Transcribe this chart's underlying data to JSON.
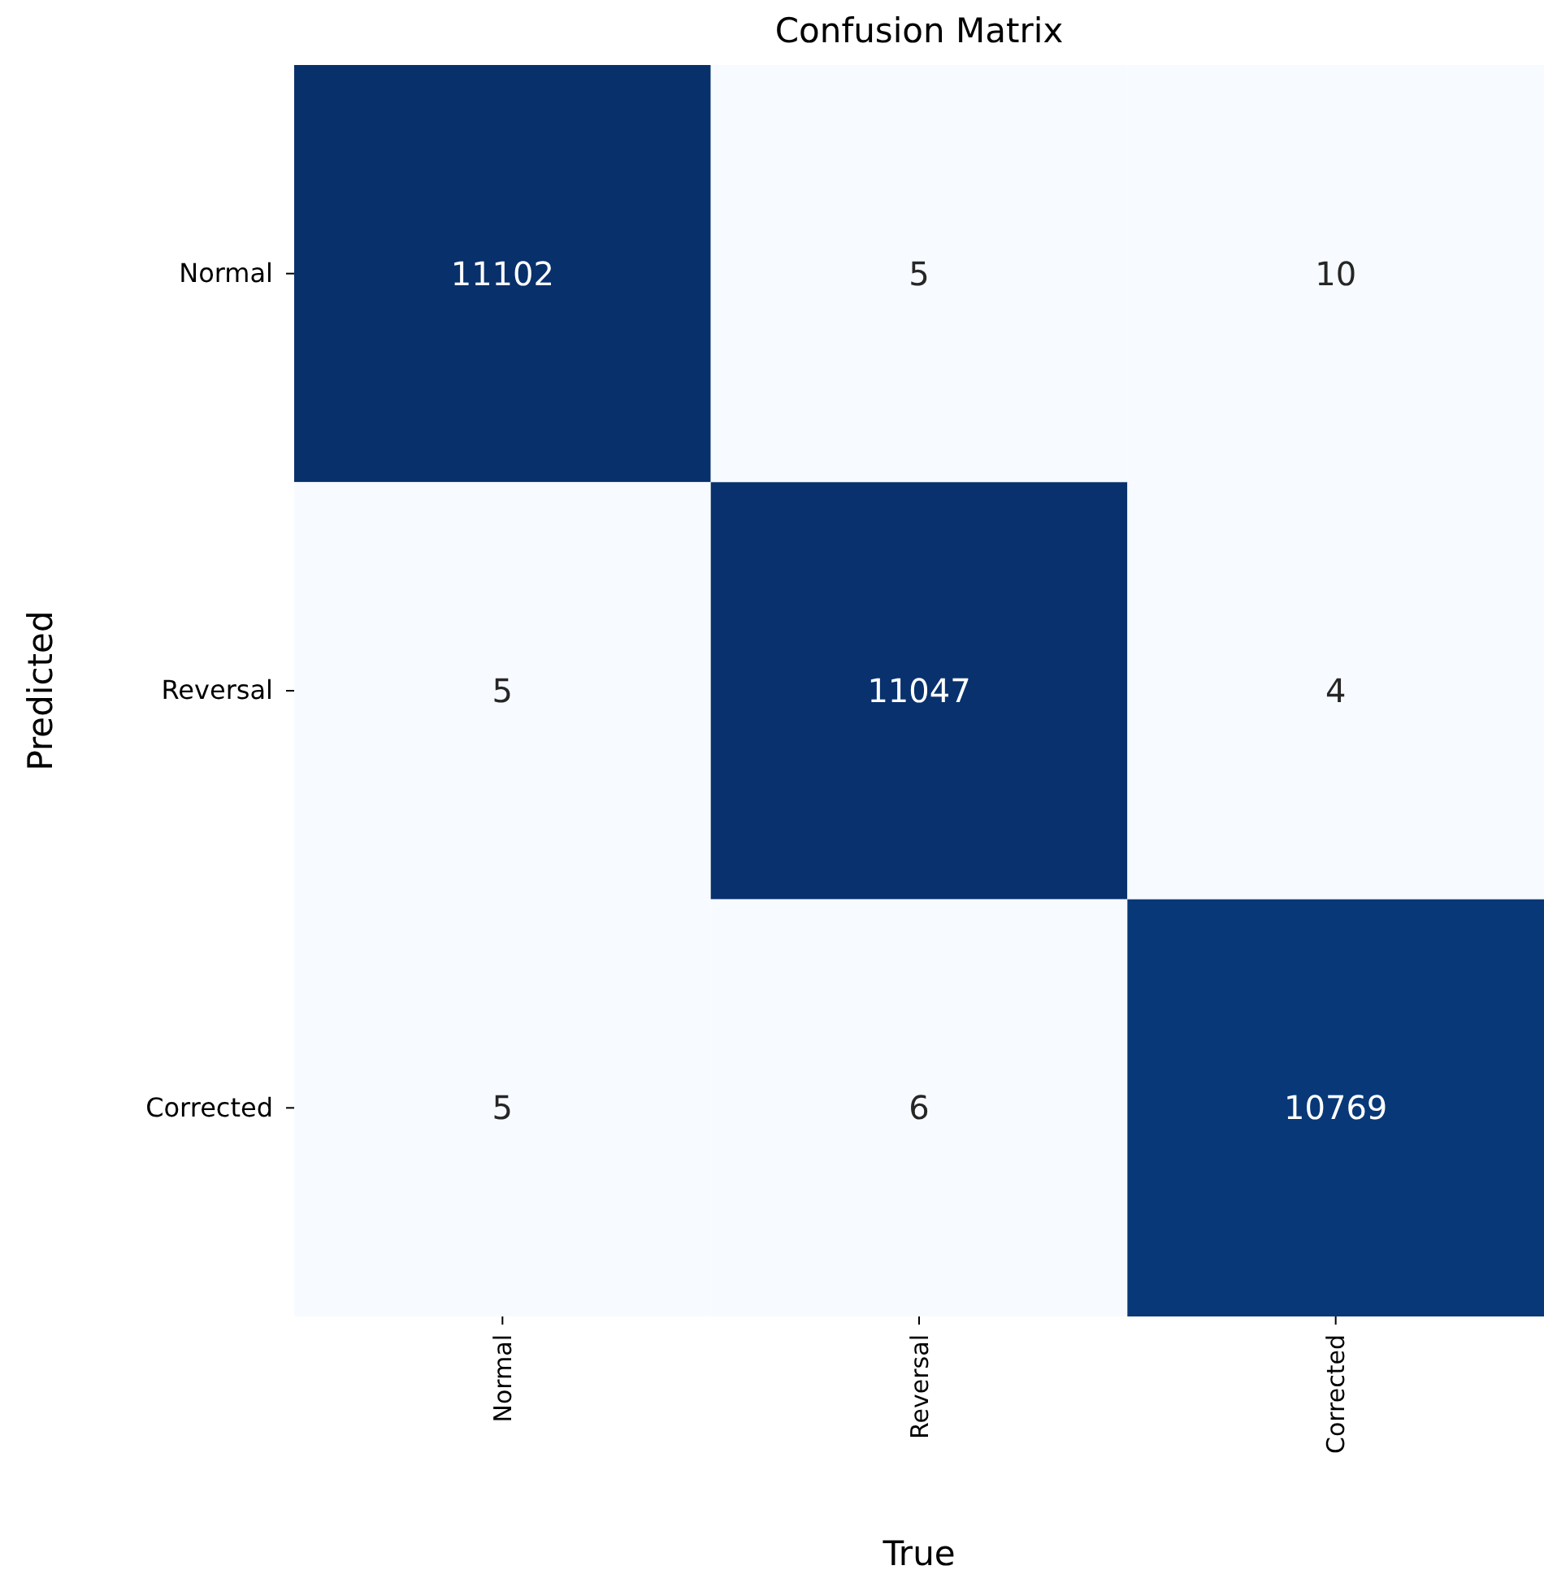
{
  "chart_data": {
    "type": "heatmap",
    "title": "Confusion Matrix",
    "xlabel": "True",
    "ylabel": "Predicted",
    "categories": [
      "Normal",
      "Reversal",
      "Corrected"
    ],
    "y_categories": [
      "Normal",
      "Reversal",
      "Corrected"
    ],
    "cells": [
      [
        11102,
        5,
        10
      ],
      [
        5,
        11047,
        4
      ],
      [
        5,
        6,
        10769
      ]
    ],
    "data_labels": true
  }
}
